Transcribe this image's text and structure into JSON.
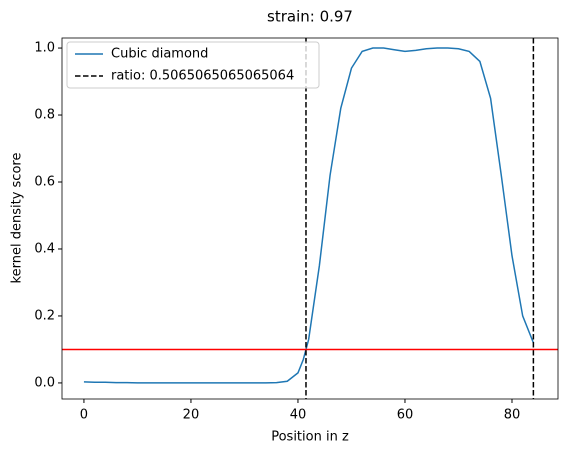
{
  "chart_data": {
    "type": "line",
    "title": "strain: 0.97",
    "xlabel": "Position in z",
    "ylabel": "kernel density score",
    "x": [
      0,
      2,
      4,
      6,
      8,
      10,
      12,
      14,
      16,
      18,
      20,
      22,
      24,
      26,
      28,
      30,
      32,
      34,
      36,
      38,
      40,
      41,
      42,
      44,
      46,
      48,
      50,
      52,
      54,
      56,
      58,
      60,
      62,
      64,
      66,
      68,
      70,
      72,
      74,
      76,
      78,
      80,
      82,
      84
    ],
    "series": [
      {
        "name": "Cubic diamond",
        "color": "#1f77b4",
        "values": [
          0.003,
          0.002,
          0.002,
          0.001,
          0.001,
          0.0,
          0.0,
          0.0,
          0.0,
          0.0,
          0.0,
          0.0,
          0.0,
          0.0,
          0.0,
          0.0,
          0.0,
          0.0,
          0.001,
          0.005,
          0.03,
          0.07,
          0.13,
          0.35,
          0.62,
          0.82,
          0.94,
          0.99,
          1.0,
          1.0,
          0.995,
          0.99,
          0.993,
          0.998,
          1.0,
          1.0,
          0.998,
          0.99,
          0.96,
          0.85,
          0.62,
          0.38,
          0.2,
          0.12
        ]
      }
    ],
    "vlines": {
      "name": "ratio: 0.5065065065065064",
      "color": "#000000",
      "values": [
        41.5,
        84.0
      ]
    },
    "hline": {
      "value": 0.1,
      "color": "#ff0000"
    },
    "xlim": [
      -4.1,
      88.6
    ],
    "xticks": [
      0,
      20,
      40,
      60,
      80
    ],
    "ylim": [
      -0.048,
      1.03
    ],
    "yticks": [
      {
        "value": 0,
        "label": "0.0"
      },
      {
        "value": 0.2,
        "label": "0.2"
      },
      {
        "value": 0.4,
        "label": "0.4"
      },
      {
        "value": 0.6,
        "label": "0.6"
      },
      {
        "value": 0.8,
        "label": "0.8"
      },
      {
        "value": 1,
        "label": "1.0"
      }
    ],
    "legend": "upper-left"
  }
}
